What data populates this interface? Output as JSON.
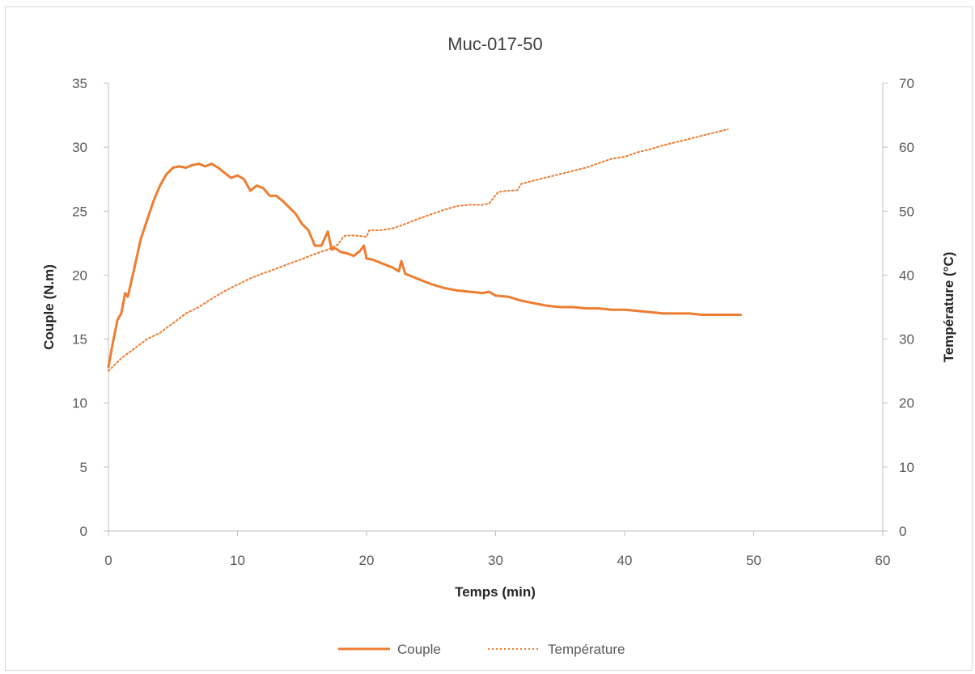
{
  "chart_data": {
    "type": "line",
    "title": "Muc-017-50",
    "xlabel": "Temps (min)",
    "ylabel_left": "Couple (N.m)",
    "ylabel_right": "Température (°C)",
    "xlim": [
      0,
      60
    ],
    "ylim_left": [
      0,
      35
    ],
    "ylim_right": [
      0,
      70
    ],
    "x_ticks": [
      "0",
      "10",
      "20",
      "30",
      "40",
      "50",
      "60"
    ],
    "y_left_ticks": [
      "0",
      "5",
      "10",
      "15",
      "20",
      "25",
      "30",
      "35"
    ],
    "y_right_ticks": [
      "0",
      "10",
      "20",
      "30",
      "40",
      "50",
      "60",
      "70"
    ],
    "grid": false,
    "legend_position": "bottom",
    "color": "#ED7D31",
    "series": [
      {
        "name": "Couple",
        "axis": "left",
        "style": "solid",
        "x": [
          0,
          0.3,
          0.7,
          1.0,
          1.3,
          1.5,
          2.0,
          2.5,
          3.0,
          3.5,
          4.0,
          4.5,
          5.0,
          5.5,
          6.0,
          6.5,
          7.0,
          7.5,
          8.0,
          8.5,
          9.0,
          9.5,
          10.0,
          10.5,
          11.0,
          11.5,
          12.0,
          12.5,
          13.0,
          13.5,
          14.0,
          14.5,
          15.0,
          15.5,
          16.0,
          16.5,
          17.0,
          17.3,
          17.6,
          18.0,
          18.5,
          19.0,
          19.5,
          19.8,
          20.0,
          20.5,
          21.0,
          21.5,
          22.0,
          22.5,
          22.7,
          23.0,
          24.0,
          25.0,
          26.0,
          27.0,
          28.0,
          29.0,
          29.5,
          30.0,
          31.0,
          32.0,
          33.0,
          34.0,
          35.0,
          36.0,
          37.0,
          38.0,
          39.0,
          40.0,
          41.0,
          42.0,
          43.0,
          44.0,
          45.0,
          46.0,
          47.0,
          48.0,
          49.0
        ],
        "values": [
          12.8,
          14.5,
          16.5,
          17.0,
          18.6,
          18.3,
          20.5,
          22.8,
          24.3,
          25.8,
          27.0,
          27.9,
          28.4,
          28.5,
          28.4,
          28.6,
          28.7,
          28.5,
          28.7,
          28.4,
          28.0,
          27.6,
          27.8,
          27.5,
          26.6,
          27.0,
          26.8,
          26.2,
          26.2,
          25.8,
          25.3,
          24.8,
          24.0,
          23.5,
          22.3,
          22.3,
          23.4,
          22.0,
          22.1,
          21.8,
          21.7,
          21.5,
          21.9,
          22.3,
          21.3,
          21.2,
          21.0,
          20.8,
          20.6,
          20.3,
          21.1,
          20.1,
          19.7,
          19.3,
          19.0,
          18.8,
          18.7,
          18.6,
          18.7,
          18.4,
          18.3,
          18.0,
          17.8,
          17.6,
          17.5,
          17.5,
          17.4,
          17.4,
          17.3,
          17.3,
          17.2,
          17.1,
          17.0,
          17.0,
          17.0,
          16.9,
          16.9,
          16.9,
          16.9
        ]
      },
      {
        "name": "Température",
        "axis": "right",
        "style": "dotted",
        "x": [
          0,
          1.0,
          2.0,
          3.0,
          4.0,
          5.0,
          6.0,
          7.0,
          8.0,
          9.0,
          10.0,
          11.0,
          12.0,
          13.0,
          14.0,
          15.0,
          16.0,
          17.0,
          17.8,
          18.2,
          18.4,
          19.0,
          20.0,
          20.2,
          21.0,
          22.0,
          23.0,
          24.0,
          25.0,
          26.0,
          27.0,
          28.0,
          29.0,
          29.5,
          30.0,
          30.2,
          31.0,
          31.7,
          32.0,
          33.0,
          34.0,
          35.0,
          36.0,
          37.0,
          38.0,
          39.0,
          40.0,
          41.0,
          42.0,
          43.0,
          44.0,
          45.0,
          46.0,
          47.0,
          48.0
        ],
        "values": [
          25.0,
          27.0,
          28.5,
          30.0,
          31.0,
          32.5,
          34.0,
          35.0,
          36.3,
          37.5,
          38.5,
          39.5,
          40.3,
          41.0,
          41.8,
          42.5,
          43.3,
          44.0,
          44.8,
          46.0,
          46.2,
          46.2,
          46.0,
          47.0,
          47.0,
          47.3,
          48.0,
          48.8,
          49.5,
          50.2,
          50.8,
          51.0,
          51.0,
          51.2,
          52.5,
          53.0,
          53.2,
          53.3,
          54.3,
          54.8,
          55.3,
          55.8,
          56.3,
          56.8,
          57.5,
          58.2,
          58.5,
          59.2,
          59.7,
          60.3,
          60.8,
          61.3,
          61.8,
          62.3,
          62.8
        ]
      }
    ]
  }
}
